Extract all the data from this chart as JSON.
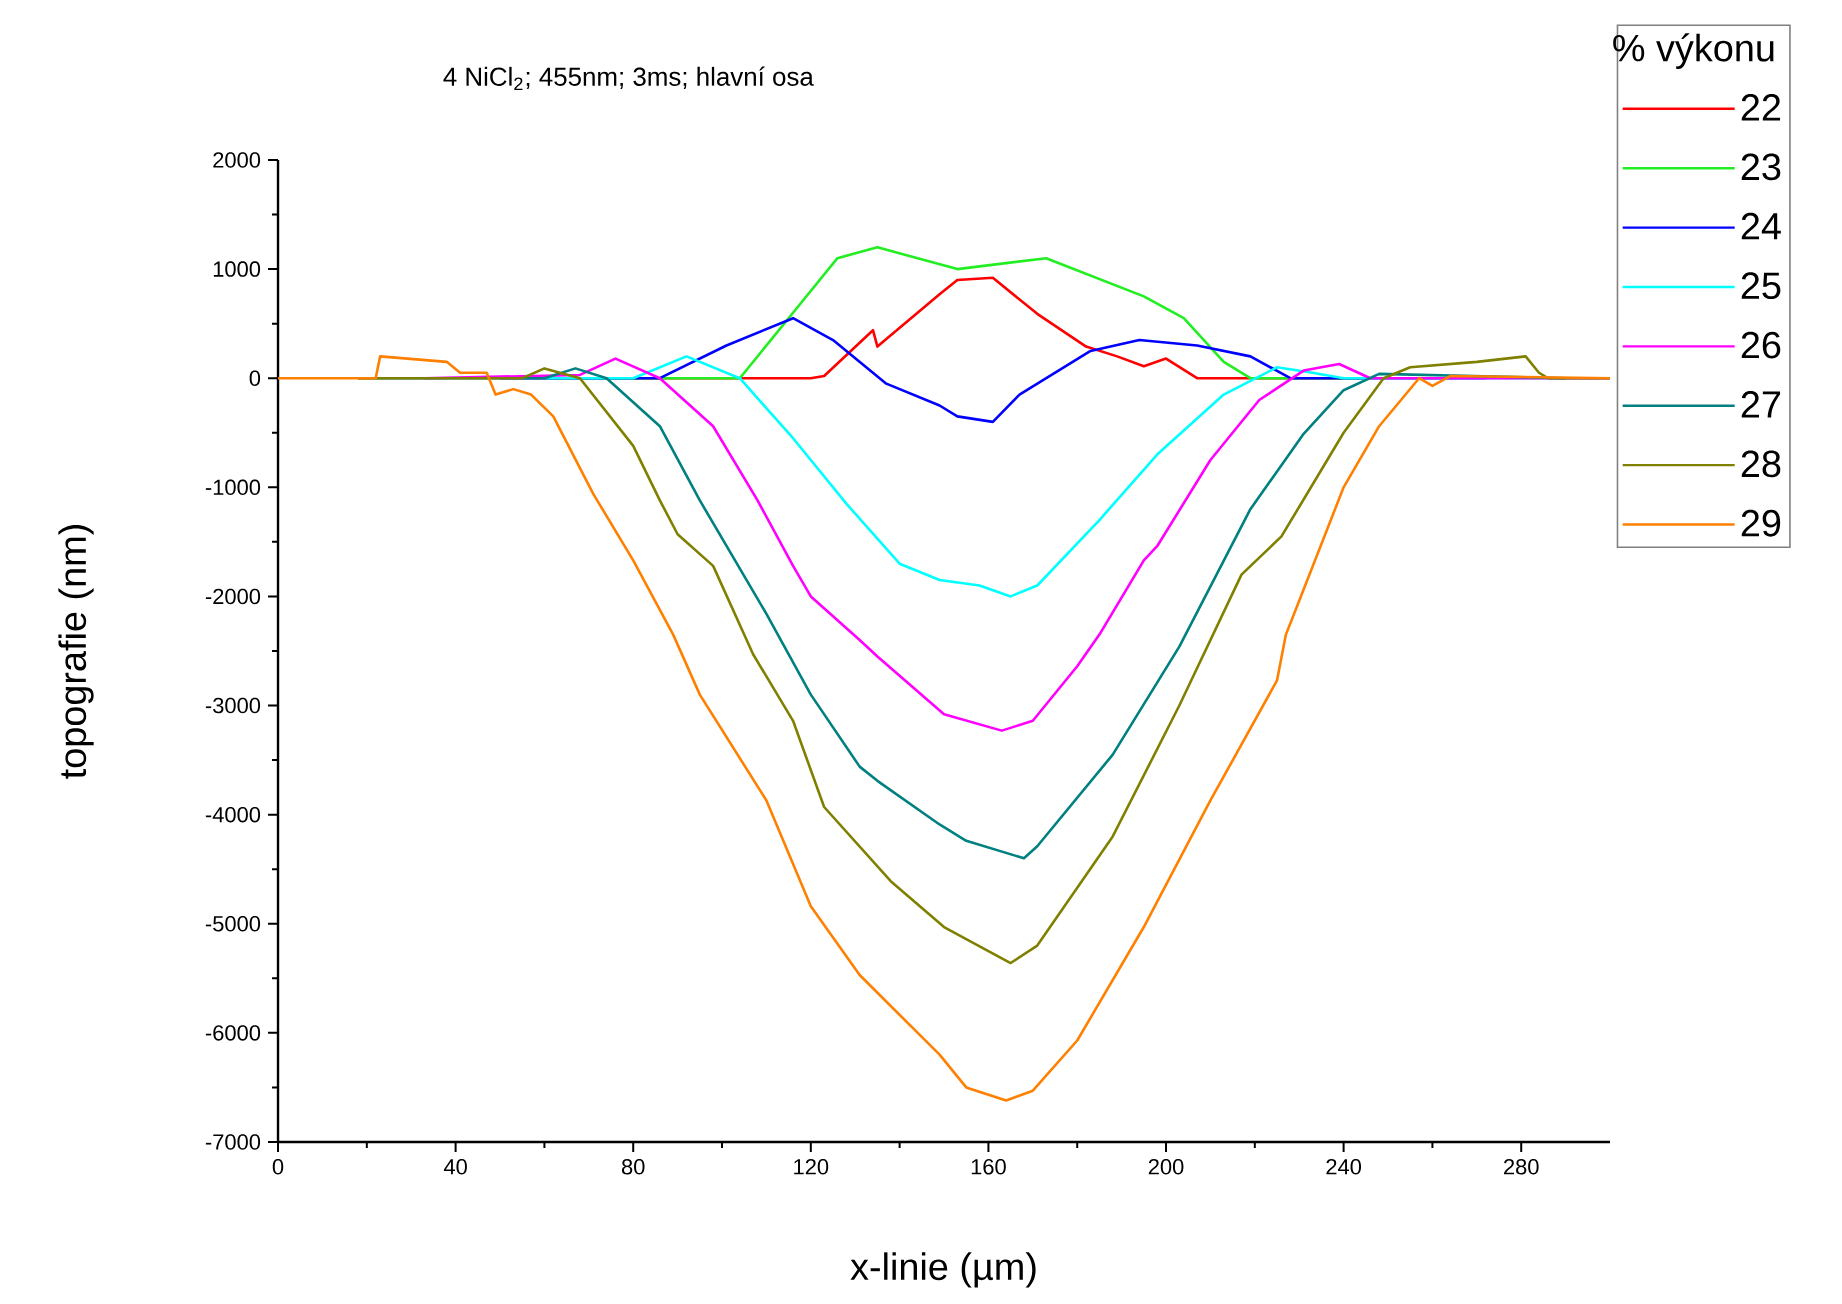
{
  "chart_data": {
    "type": "line",
    "title": "4 NiCl$_{2}$; 455nm; 3ms; hlavní osa",
    "xlabel": "x-linie (µm)",
    "ylabel": "topografie (nm)",
    "legend_title": "% výkonu",
    "xlim": [
      0,
      300
    ],
    "ylim": [
      -7000,
      2000
    ],
    "xticks": [
      0,
      40,
      80,
      120,
      160,
      200,
      240,
      280
    ],
    "yticks": [
      -7000,
      -6000,
      -5000,
      -4000,
      -3000,
      -2000,
      -1000,
      0,
      1000,
      2000
    ],
    "grid": false,
    "legend": "top right",
    "marker": "none",
    "line_style": "solid",
    "series": [
      {
        "name": "22",
        "color": "#ff0000",
        "x": [
          60,
          120,
          123,
          134,
          135,
          149,
          153,
          161,
          171,
          182,
          189,
          195,
          200,
          207,
          245
        ],
        "values": [
          0,
          0,
          20,
          440,
          290,
          770,
          900,
          920,
          590,
          290,
          200,
          110,
          180,
          0,
          0
        ]
      },
      {
        "name": "23",
        "color": "#22ee22",
        "x": [
          60,
          104,
          116,
          126,
          135,
          153,
          173,
          195,
          204,
          213,
          219,
          233,
          245
        ],
        "values": [
          0,
          0,
          600,
          1100,
          1200,
          1000,
          1100,
          750,
          550,
          150,
          0,
          0,
          0
        ]
      },
      {
        "name": "24",
        "color": "#0000ff",
        "x": [
          50,
          86,
          101,
          116,
          125,
          137,
          149,
          153,
          161,
          167,
          183,
          194,
          207,
          219,
          228,
          272
        ],
        "values": [
          0,
          0,
          300,
          550,
          350,
          -50,
          -250,
          -350,
          -400,
          -150,
          250,
          350,
          300,
          200,
          0,
          0
        ]
      },
      {
        "name": "25",
        "color": "#00ffff",
        "x": [
          60,
          80,
          92,
          104,
          116,
          128,
          140,
          149,
          158,
          165,
          171,
          185,
          198,
          213,
          225,
          233,
          240,
          300
        ],
        "values": [
          0,
          0,
          200,
          0,
          -550,
          -1150,
          -1700,
          -1850,
          -1900,
          -2000,
          -1900,
          -1300,
          -700,
          -150,
          100,
          50,
          0,
          0
        ]
      },
      {
        "name": "26",
        "color": "#ff00ff",
        "x": [
          33,
          68,
          76,
          86,
          98,
          108,
          116,
          120,
          131,
          135,
          150,
          163,
          170,
          180,
          185,
          195,
          198,
          210,
          221,
          231,
          239,
          246,
          300
        ],
        "values": [
          0,
          30,
          180,
          0,
          -440,
          -1120,
          -1720,
          -2000,
          -2400,
          -2550,
          -3080,
          -3230,
          -3140,
          -2640,
          -2350,
          -1670,
          -1540,
          -750,
          -200,
          70,
          130,
          0,
          0
        ]
      },
      {
        "name": "27",
        "color": "#008080",
        "x": [
          18,
          60,
          67,
          74,
          86,
          95,
          110,
          120,
          131,
          135,
          149,
          155,
          168,
          171,
          188,
          203,
          219,
          231,
          240,
          248,
          290
        ],
        "values": [
          0,
          0,
          90,
          0,
          -440,
          -1120,
          -2160,
          -2900,
          -3560,
          -3690,
          -4090,
          -4240,
          -4400,
          -4290,
          -3450,
          -2460,
          -1200,
          -510,
          -110,
          40,
          0
        ]
      },
      {
        "name": "28",
        "color": "#808000",
        "x": [
          18,
          55,
          60,
          68,
          80,
          86,
          90,
          98,
          107,
          116,
          123,
          138,
          150,
          165,
          171,
          188,
          203,
          217,
          226,
          240,
          249,
          255,
          270,
          281,
          284,
          286,
          300
        ],
        "values": [
          0,
          0,
          90,
          0,
          -620,
          -1120,
          -1430,
          -1720,
          -2530,
          -3140,
          -3930,
          -4610,
          -5030,
          -5360,
          -5200,
          -4200,
          -3000,
          -1800,
          -1450,
          -500,
          0,
          100,
          150,
          200,
          50,
          0,
          0
        ]
      },
      {
        "name": "29",
        "color": "#ff8000",
        "x": [
          0,
          22,
          23,
          38,
          41,
          47,
          49,
          53,
          57,
          62,
          71,
          80,
          89,
          95,
          110,
          120,
          131,
          149,
          155,
          164,
          170,
          180,
          195,
          210,
          225,
          227,
          230,
          240,
          248,
          257,
          260,
          264,
          300
        ],
        "values": [
          0,
          0,
          200,
          150,
          50,
          50,
          -150,
          -100,
          -150,
          -350,
          -1060,
          -1670,
          -2350,
          -2900,
          -3870,
          -4840,
          -5470,
          -6200,
          -6500,
          -6620,
          -6530,
          -6070,
          -5030,
          -3870,
          -2770,
          -2350,
          -2040,
          -1000,
          -440,
          0,
          -70,
          20,
          0
        ]
      }
    ]
  }
}
